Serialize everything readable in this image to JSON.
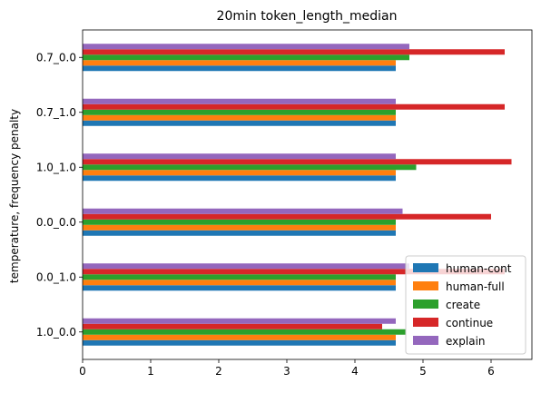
{
  "chart_data": {
    "type": "bar",
    "orientation": "horizontal",
    "title": "20min token_length_median",
    "xlabel": "",
    "ylabel": "temperature, frequency penalty",
    "xlim": [
      0,
      6.6
    ],
    "xticks": [
      "0",
      "1",
      "2",
      "3",
      "4",
      "5",
      "6"
    ],
    "grid": false,
    "legend_position": "lower-right",
    "categories": [
      "1.0_0.0",
      "0.0_1.0",
      "0.0_0.0",
      "1.0_1.0",
      "0.7_1.0",
      "0.7_0.0"
    ],
    "series": [
      {
        "name": "human-cont",
        "color": "#1f77b4",
        "values": [
          4.6,
          4.6,
          4.6,
          4.6,
          4.6,
          4.6
        ]
      },
      {
        "name": "human-full",
        "color": "#ff7f0e",
        "values": [
          4.6,
          4.6,
          4.6,
          4.6,
          4.6,
          4.6
        ]
      },
      {
        "name": "create",
        "color": "#2ca02c",
        "values": [
          4.75,
          4.6,
          4.6,
          4.9,
          4.6,
          4.8
        ]
      },
      {
        "name": "continue",
        "color": "#d62728",
        "values": [
          4.4,
          6.2,
          6.0,
          6.3,
          6.2,
          6.2
        ]
      },
      {
        "name": "explain",
        "color": "#9467bd",
        "values": [
          4.6,
          4.8,
          4.7,
          4.6,
          4.6,
          4.8
        ]
      }
    ]
  }
}
